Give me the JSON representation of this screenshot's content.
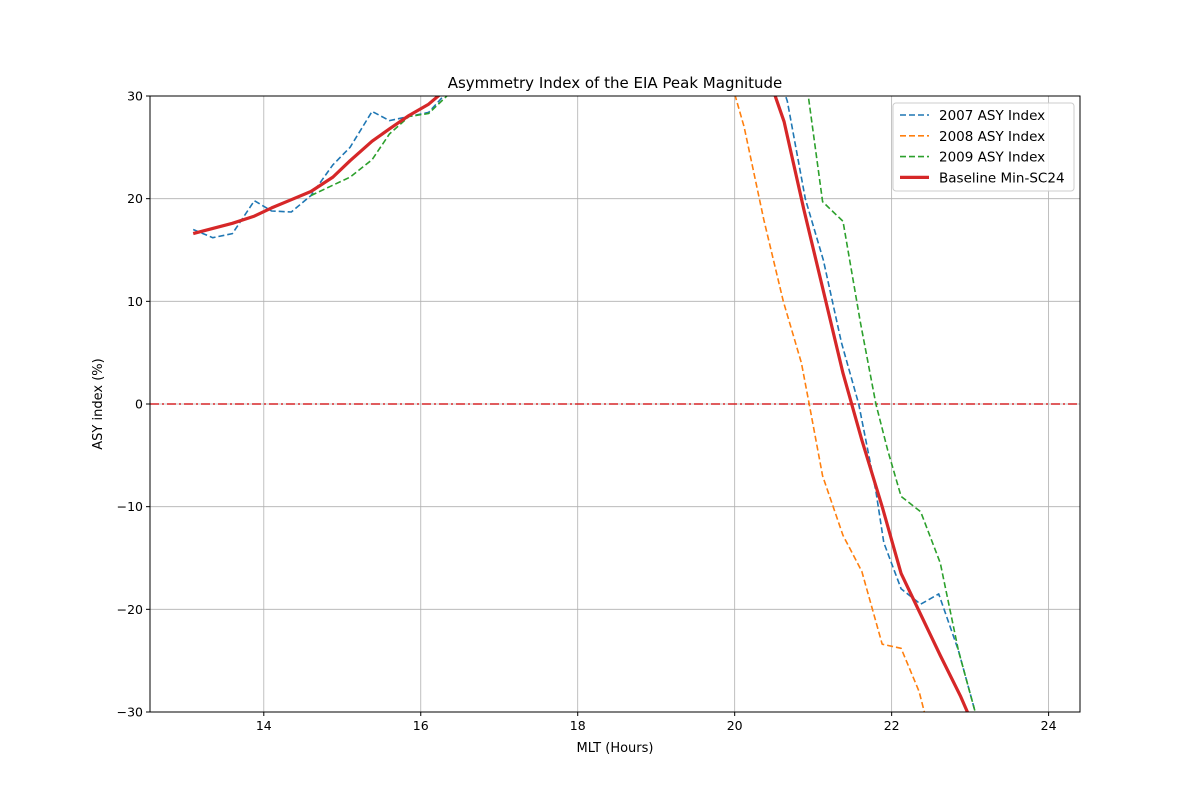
{
  "chart_data": {
    "type": "line",
    "title": "Asymmetry Index of the EIA Peak Magnitude",
    "xlabel": "MLT (Hours)",
    "ylabel": "ASY index (%)",
    "xlim": [
      12.55,
      24.4
    ],
    "ylim": [
      -30,
      30
    ],
    "xticks": [
      14,
      16,
      18,
      20,
      22,
      24
    ],
    "yticks": [
      -30,
      -20,
      -10,
      0,
      10,
      20,
      30
    ],
    "ytick_labels": [
      "−30",
      "−20",
      "−10",
      "0",
      "10",
      "20",
      "30"
    ],
    "grid": true,
    "legend_position": "top-right",
    "reference_line": {
      "y": 0,
      "color": "#d62728",
      "style": "dash-dot"
    },
    "series": [
      {
        "name": "2007 ASY Index",
        "color": "#1f77b4",
        "style": "dashed",
        "points": [
          [
            13.1,
            17.0
          ],
          [
            13.35,
            16.2
          ],
          [
            13.6,
            16.6
          ],
          [
            13.88,
            19.8
          ],
          [
            14.1,
            18.8
          ],
          [
            14.35,
            18.7
          ],
          [
            14.6,
            20.3
          ],
          [
            14.88,
            23.3
          ],
          [
            15.1,
            25.0
          ],
          [
            15.38,
            28.5
          ],
          [
            15.6,
            27.6
          ],
          [
            15.85,
            28.0
          ],
          [
            16.1,
            28.4
          ],
          [
            16.35,
            30.5
          ],
          [
            20.56,
            32.0
          ],
          [
            20.67,
            29.5
          ],
          [
            20.9,
            20.0
          ],
          [
            21.13,
            14.0
          ],
          [
            21.36,
            6.0
          ],
          [
            21.58,
            0.0
          ],
          [
            21.8,
            -8.5
          ],
          [
            21.9,
            -13.5
          ],
          [
            22.12,
            -18.0
          ],
          [
            22.37,
            -19.5
          ],
          [
            22.6,
            -18.5
          ],
          [
            22.85,
            -24.0
          ],
          [
            23.1,
            -31.0
          ]
        ]
      },
      {
        "name": "2008 ASY Index",
        "color": "#ff7f0e",
        "style": "dashed",
        "points": [
          [
            19.97,
            31.0
          ],
          [
            20.12,
            27.0
          ],
          [
            20.37,
            18.0
          ],
          [
            20.62,
            10.0
          ],
          [
            20.85,
            4.0
          ],
          [
            20.95,
            0.0
          ],
          [
            21.12,
            -7.0
          ],
          [
            21.38,
            -12.8
          ],
          [
            21.62,
            -16.3
          ],
          [
            21.88,
            -23.4
          ],
          [
            22.12,
            -23.8
          ],
          [
            22.35,
            -28.0
          ],
          [
            22.45,
            -31.0
          ]
        ]
      },
      {
        "name": "2009 ASY Index",
        "color": "#2ca02c",
        "style": "dashed",
        "points": [
          [
            14.6,
            20.3
          ],
          [
            14.85,
            21.2
          ],
          [
            15.1,
            22.1
          ],
          [
            15.38,
            23.8
          ],
          [
            15.6,
            26.3
          ],
          [
            15.85,
            28.0
          ],
          [
            16.1,
            28.3
          ],
          [
            16.4,
            30.5
          ],
          [
            20.92,
            31.0
          ],
          [
            21.12,
            19.7
          ],
          [
            21.38,
            17.8
          ],
          [
            21.6,
            8.0
          ],
          [
            21.8,
            0.0
          ],
          [
            21.95,
            -4.5
          ],
          [
            22.12,
            -9.0
          ],
          [
            22.37,
            -10.5
          ],
          [
            22.62,
            -15.5
          ],
          [
            22.85,
            -24.0
          ],
          [
            23.1,
            -31.0
          ]
        ]
      },
      {
        "name": "Baseline Min-SC24",
        "color": "#d62728",
        "style": "solid",
        "points": [
          [
            13.1,
            16.6
          ],
          [
            13.35,
            17.1
          ],
          [
            13.6,
            17.6
          ],
          [
            13.88,
            18.3
          ],
          [
            14.1,
            19.1
          ],
          [
            14.35,
            19.9
          ],
          [
            14.6,
            20.7
          ],
          [
            14.88,
            22.1
          ],
          [
            15.1,
            23.7
          ],
          [
            15.38,
            25.6
          ],
          [
            15.6,
            26.8
          ],
          [
            15.85,
            28.1
          ],
          [
            16.1,
            29.2
          ],
          [
            16.3,
            30.5
          ],
          [
            20.47,
            31.0
          ],
          [
            20.63,
            27.5
          ],
          [
            20.88,
            19.0
          ],
          [
            21.13,
            11.0
          ],
          [
            21.38,
            3.0
          ],
          [
            21.62,
            -3.5
          ],
          [
            21.88,
            -10.0
          ],
          [
            22.12,
            -16.5
          ],
          [
            22.37,
            -20.5
          ],
          [
            22.62,
            -24.5
          ],
          [
            22.88,
            -28.5
          ],
          [
            23.05,
            -31.5
          ]
        ]
      }
    ]
  }
}
